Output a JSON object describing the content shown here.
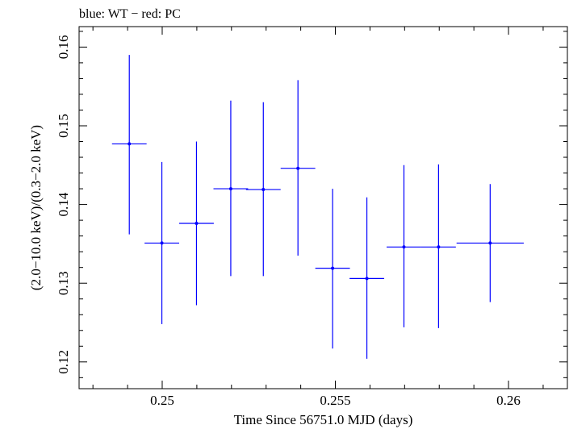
{
  "chart_data": {
    "type": "scatter",
    "title": "blue: WT − red: PC",
    "xlabel": "Time Since 56751.0 MJD (days)",
    "ylabel": "(2.0−10.0 keV)/(0.3−2.0 keV)",
    "xlim": [
      0.2476,
      0.2617
    ],
    "ylim": [
      0.1166,
      0.1626
    ],
    "x_ticks": [
      0.25,
      0.255,
      0.26
    ],
    "x_tick_labels": [
      "0.25",
      "0.255",
      "0.26"
    ],
    "y_ticks": [
      0.12,
      0.13,
      0.14,
      0.15,
      0.16
    ],
    "y_tick_labels": [
      "0.12",
      "0.13",
      "0.14",
      "0.15",
      "0.16"
    ],
    "grid": false,
    "series": [
      {
        "color": "#0000ff",
        "points": [
          {
            "x": 0.24905,
            "xerr": 0.0005,
            "y": 0.1477,
            "ylo": 0.1362,
            "yhi": 0.159
          },
          {
            "x": 0.24999,
            "xerr": 0.0005,
            "y": 0.1351,
            "ylo": 0.1248,
            "yhi": 0.1454
          },
          {
            "x": 0.25099,
            "xerr": 0.0005,
            "y": 0.1376,
            "ylo": 0.1272,
            "yhi": 0.148
          },
          {
            "x": 0.25198,
            "xerr": 0.0005,
            "y": 0.142,
            "ylo": 0.1309,
            "yhi": 0.1532
          },
          {
            "x": 0.25292,
            "xerr": 0.0005,
            "y": 0.1419,
            "ylo": 0.1309,
            "yhi": 0.153
          },
          {
            "x": 0.25392,
            "xerr": 0.0005,
            "y": 0.1446,
            "ylo": 0.1335,
            "yhi": 0.1558
          },
          {
            "x": 0.25492,
            "xerr": 0.0005,
            "y": 0.1319,
            "ylo": 0.1217,
            "yhi": 0.142
          },
          {
            "x": 0.25591,
            "xerr": 0.0005,
            "y": 0.1306,
            "ylo": 0.1204,
            "yhi": 0.1409
          },
          {
            "x": 0.25698,
            "xerr": 0.0005,
            "y": 0.1346,
            "ylo": 0.1244,
            "yhi": 0.145
          },
          {
            "x": 0.25798,
            "xerr": 0.0005,
            "y": 0.1346,
            "ylo": 0.1243,
            "yhi": 0.1451
          },
          {
            "x": 0.25947,
            "xerr": 0.00097,
            "y": 0.1351,
            "ylo": 0.1276,
            "yhi": 0.1426
          }
        ]
      }
    ]
  }
}
